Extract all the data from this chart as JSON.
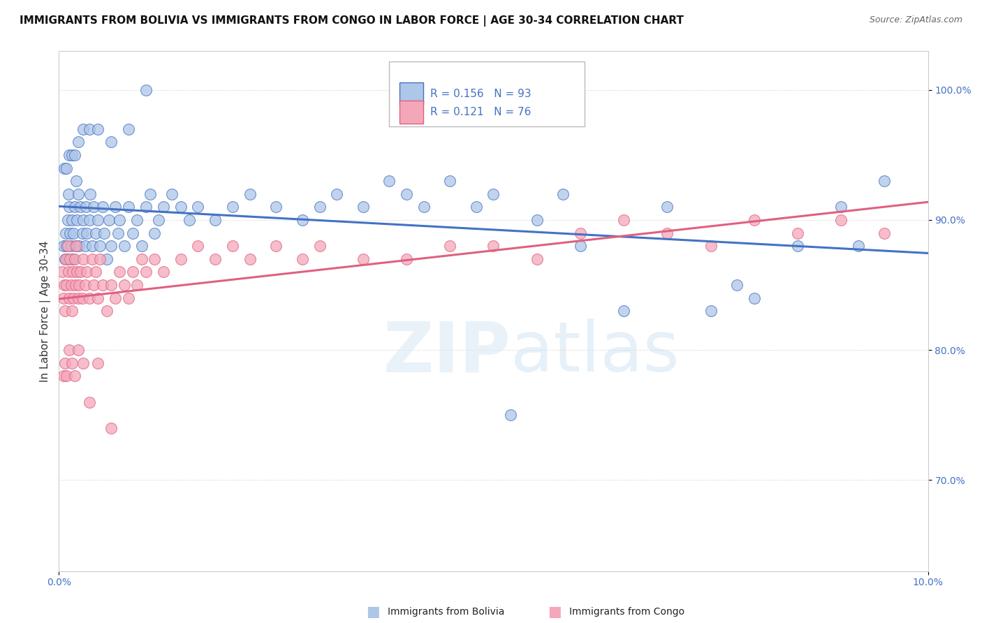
{
  "title": "IMMIGRANTS FROM BOLIVIA VS IMMIGRANTS FROM CONGO IN LABOR FORCE | AGE 30-34 CORRELATION CHART",
  "source": "Source: ZipAtlas.com",
  "ylabel": "In Labor Force | Age 30-34",
  "legend_bolivia": "Immigrants from Bolivia",
  "legend_congo": "Immigrants from Congo",
  "R_bolivia": 0.156,
  "N_bolivia": 93,
  "R_congo": 0.121,
  "N_congo": 76,
  "color_bolivia": "#aec6e8",
  "color_congo": "#f4a7b9",
  "line_color_bolivia": "#4472c4",
  "line_color_congo": "#e06080",
  "watermark_zip": "ZIP",
  "watermark_atlas": "atlas",
  "bolivia_x": [
    0.05,
    0.07,
    0.08,
    0.09,
    0.1,
    0.1,
    0.11,
    0.12,
    0.13,
    0.14,
    0.15,
    0.16,
    0.17,
    0.18,
    0.19,
    0.2,
    0.21,
    0.22,
    0.23,
    0.25,
    0.27,
    0.28,
    0.3,
    0.31,
    0.32,
    0.35,
    0.36,
    0.38,
    0.4,
    0.42,
    0.45,
    0.47,
    0.5,
    0.52,
    0.55,
    0.58,
    0.6,
    0.65,
    0.68,
    0.7,
    0.75,
    0.8,
    0.85,
    0.9,
    0.95,
    1.0,
    1.05,
    1.1,
    1.15,
    1.2,
    1.3,
    1.4,
    1.5,
    1.6,
    1.8,
    2.0,
    2.2,
    2.5,
    2.8,
    3.0,
    3.2,
    3.5,
    3.8,
    4.0,
    4.2,
    4.5,
    4.8,
    5.0,
    5.2,
    5.5,
    5.8,
    6.0,
    6.5,
    7.0,
    7.5,
    7.8,
    8.0,
    8.5,
    9.0,
    9.2,
    9.5,
    0.06,
    0.09,
    0.12,
    0.15,
    0.18,
    0.22,
    0.28,
    0.35,
    0.45,
    0.6,
    0.8,
    1.0
  ],
  "bolivia_y": [
    88,
    87,
    89,
    88,
    90,
    87,
    92,
    91,
    89,
    88,
    90,
    87,
    89,
    91,
    88,
    93,
    90,
    92,
    88,
    91,
    89,
    90,
    88,
    91,
    89,
    90,
    92,
    88,
    91,
    89,
    90,
    88,
    91,
    89,
    87,
    90,
    88,
    91,
    89,
    90,
    88,
    91,
    89,
    90,
    88,
    91,
    92,
    89,
    90,
    91,
    92,
    91,
    90,
    91,
    90,
    91,
    92,
    91,
    90,
    91,
    92,
    91,
    93,
    92,
    91,
    93,
    91,
    92,
    75,
    90,
    92,
    88,
    83,
    91,
    83,
    85,
    84,
    88,
    91,
    88,
    93,
    94,
    94,
    95,
    95,
    95,
    96,
    97,
    97,
    97,
    96,
    97,
    100
  ],
  "congo_x": [
    0.04,
    0.05,
    0.06,
    0.07,
    0.08,
    0.09,
    0.1,
    0.11,
    0.12,
    0.13,
    0.14,
    0.15,
    0.16,
    0.17,
    0.18,
    0.19,
    0.2,
    0.21,
    0.22,
    0.23,
    0.25,
    0.27,
    0.28,
    0.3,
    0.32,
    0.35,
    0.38,
    0.4,
    0.42,
    0.45,
    0.47,
    0.5,
    0.55,
    0.6,
    0.65,
    0.7,
    0.75,
    0.8,
    0.85,
    0.9,
    0.95,
    1.0,
    1.1,
    1.2,
    1.4,
    1.6,
    1.8,
    2.0,
    2.2,
    2.5,
    2.8,
    3.0,
    3.5,
    4.0,
    4.5,
    5.0,
    5.5,
    6.0,
    6.5,
    7.0,
    7.5,
    8.0,
    8.5,
    9.0,
    9.5,
    0.05,
    0.07,
    0.09,
    0.12,
    0.15,
    0.18,
    0.22,
    0.28,
    0.35,
    0.45,
    0.6
  ],
  "congo_y": [
    86,
    84,
    85,
    83,
    87,
    85,
    88,
    86,
    84,
    87,
    85,
    83,
    86,
    84,
    87,
    85,
    88,
    86,
    84,
    85,
    86,
    84,
    87,
    85,
    86,
    84,
    87,
    85,
    86,
    84,
    87,
    85,
    83,
    85,
    84,
    86,
    85,
    84,
    86,
    85,
    87,
    86,
    87,
    86,
    87,
    88,
    87,
    88,
    87,
    88,
    87,
    88,
    87,
    87,
    88,
    88,
    87,
    89,
    90,
    89,
    88,
    90,
    89,
    90,
    89,
    78,
    79,
    78,
    80,
    79,
    78,
    80,
    79,
    76,
    79,
    74
  ],
  "xlim": [
    0.0,
    10.0
  ],
  "ylim": [
    63.0,
    103.0
  ],
  "yticks": [
    70,
    80,
    90,
    100
  ],
  "xticks": [
    0.0,
    10.0
  ],
  "tick_fontsize": 10,
  "title_fontsize": 11,
  "ylabel_fontsize": 11
}
